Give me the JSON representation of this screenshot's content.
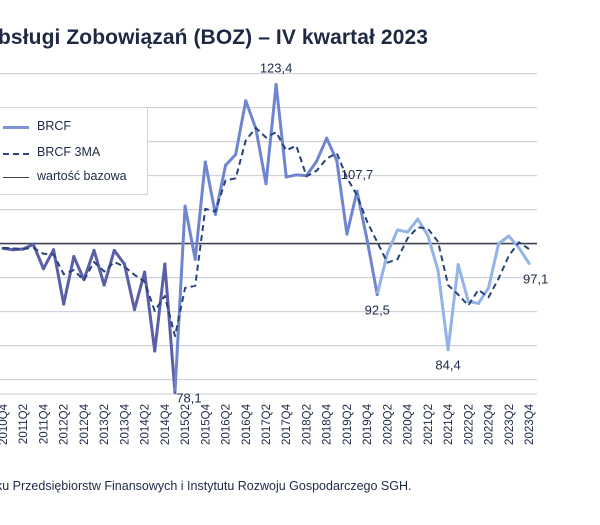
{
  "title": "bsługi Zobowiązań (BOZ) – IV kwartał 2023",
  "footer": "ku Przedsiębiorstw Finansowych i Instytutu Rozwoju Gospodarczego SGH.",
  "legend": {
    "brcf": "BRCF",
    "brcf_3ma": "BRCF 3MA",
    "baseline": "wartość bazowa"
  },
  "colors": {
    "brcf_early": "#5b5fa8",
    "brcf_mid": "#6f86cf",
    "brcf_late": "#94b3e6",
    "ma": "#27437a",
    "baseline": "#3d4350",
    "grid": "#c6ccd6"
  },
  "chart_data": {
    "type": "line",
    "x": [
      "2010Q4",
      "2011Q1",
      "2011Q2",
      "2011Q3",
      "2011Q4",
      "2012Q1",
      "2012Q2",
      "2012Q3",
      "2012Q4",
      "2013Q1",
      "2013Q2",
      "2013Q3",
      "2013Q4",
      "2014Q1",
      "2014Q2",
      "2014Q3",
      "2014Q4",
      "2015Q1",
      "2015Q2",
      "2015Q3",
      "2015Q4",
      "2016Q1",
      "2016Q2",
      "2016Q3",
      "2016Q4",
      "2017Q1",
      "2017Q2",
      "2017Q3",
      "2017Q4",
      "2018Q1",
      "2018Q2",
      "2018Q3",
      "2018Q4",
      "2019Q1",
      "2019Q2",
      "2019Q3",
      "2019Q4",
      "2020Q1",
      "2020Q2",
      "2020Q3",
      "2020Q4",
      "2021Q1",
      "2021Q2",
      "2021Q3",
      "2021Q4",
      "2022Q1",
      "2022Q2",
      "2022Q3",
      "2022Q4",
      "2023Q1",
      "2023Q2",
      "2023Q3",
      "2023Q4"
    ],
    "tick_labels": [
      "2010Q4",
      "2011Q2",
      "2011Q4",
      "2012Q2",
      "2012Q4",
      "2013Q2",
      "2013Q4",
      "2014Q2",
      "2014Q4",
      "2015Q2",
      "2015Q4",
      "2016Q2",
      "2016Q4",
      "2017Q2",
      "2017Q4",
      "2018Q2",
      "2018Q4",
      "2019Q2",
      "2019Q4",
      "2020Q2",
      "2020Q4",
      "2021Q2",
      "2021Q4",
      "2022Q2",
      "2022Q4",
      "2023Q2",
      "2023Q4"
    ],
    "series": [
      {
        "name": "BRCF",
        "values": [
          99.3,
          99.1,
          99.2,
          99.9,
          96.3,
          99.1,
          91.1,
          98.1,
          94.7,
          99.0,
          93.9,
          99.0,
          97.0,
          90.3,
          95.8,
          84.2,
          97.0,
          78.1,
          105.5,
          97.7,
          112.0,
          104.3,
          111.5,
          113.1,
          121.0,
          116.9,
          108.8,
          123.4,
          109.8,
          110.1,
          110.0,
          112.1,
          115.5,
          112.2,
          101.4,
          107.7,
          100.5,
          92.5,
          98.6,
          102.0,
          101.7,
          103.6,
          101.2,
          96.1,
          84.4,
          96.9,
          91.5,
          91.2,
          93.5,
          100.0,
          101.1,
          99.4,
          97.1
        ]
      },
      {
        "name": "BRCF 3MA",
        "values": [
          99.4,
          99.3,
          99.2,
          99.4,
          98.5,
          98.4,
          95.5,
          96.1,
          94.6,
          97.3,
          95.9,
          97.3,
          96.6,
          95.4,
          94.4,
          90.1,
          92.3,
          86.4,
          93.5,
          93.8,
          105.1,
          104.7,
          109.3,
          109.6,
          115.2,
          117.0,
          115.6,
          116.4,
          113.7,
          114.4,
          109.9,
          110.7,
          112.5,
          113.3,
          109.7,
          107.1,
          103.2,
          100.2,
          97.2,
          97.7,
          100.8,
          102.4,
          102.2,
          100.3,
          93.9,
          92.5,
          90.9,
          93.2,
          92.1,
          94.9,
          98.2,
          100.2,
          99.2
        ]
      }
    ],
    "baseline": 100,
    "annotations": [
      {
        "x": "2017Q3",
        "label": "123,4"
      },
      {
        "x": "2019Q3",
        "label": "107,7"
      },
      {
        "x": "2020Q1",
        "label": "92,5"
      },
      {
        "x": "2021Q4",
        "label": "84,4"
      },
      {
        "x": "2015Q1",
        "label": "78,1"
      },
      {
        "x": "2023Q4",
        "label": "97,1"
      }
    ],
    "ylim": [
      77,
      127
    ],
    "grid": true,
    "legend_position": "top-left"
  }
}
